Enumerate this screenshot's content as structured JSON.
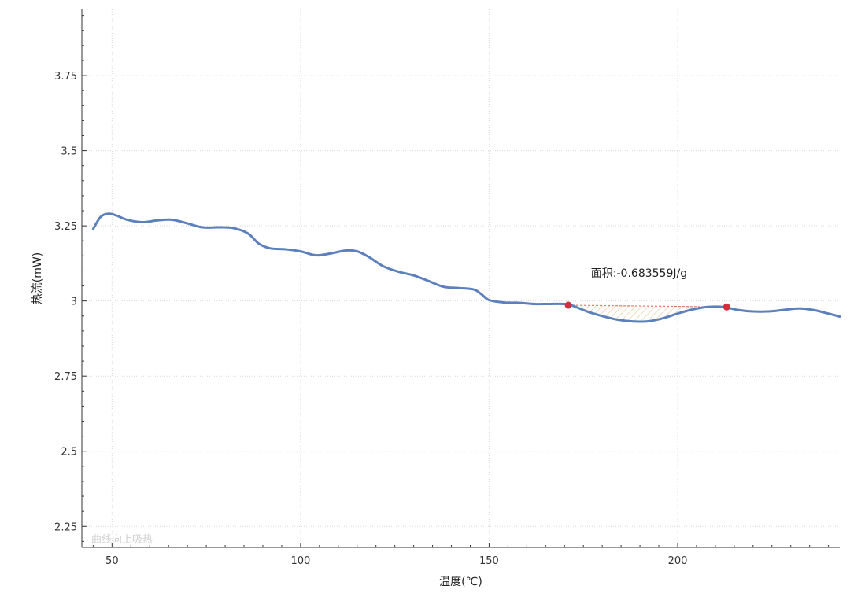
{
  "chart_data": {
    "type": "line",
    "title": "",
    "xlabel": "温度(℃)",
    "ylabel": "热流(mW)",
    "xlim": [
      42,
      243
    ],
    "ylim": [
      2.18,
      3.97
    ],
    "xticks": [
      50,
      100,
      150,
      200
    ],
    "xtick_labels": [
      "50",
      "100",
      "150",
      "200"
    ],
    "yticks": [
      2.25,
      2.5,
      2.75,
      3,
      3.25,
      3.5,
      3.75
    ],
    "ytick_labels": [
      "2.25",
      "2.5",
      "2.75",
      "3",
      "3.25",
      "3.5",
      "3.75"
    ],
    "grid": true,
    "line_color": "#5b80bd",
    "marker_color": "#d0303d",
    "baseline_color": "#e57a6a",
    "hatch_color": "#e0c48a",
    "series": [
      {
        "x": [
          45,
          47,
          49,
          51,
          54,
          58,
          62,
          66,
          70,
          74,
          78,
          82,
          86,
          89,
          92,
          96,
          100,
          104,
          108,
          112,
          115,
          118,
          122,
          126,
          130,
          134,
          138,
          142,
          146,
          148,
          150,
          154,
          158,
          162,
          166,
          170,
          172,
          176,
          180,
          184,
          188,
          192,
          196,
          200,
          204,
          208,
          212,
          216,
          220,
          224,
          228,
          232,
          236,
          240,
          243
        ],
        "y": [
          3.24,
          3.28,
          3.29,
          3.285,
          3.27,
          3.262,
          3.268,
          3.27,
          3.258,
          3.245,
          3.245,
          3.243,
          3.225,
          3.19,
          3.175,
          3.172,
          3.165,
          3.152,
          3.158,
          3.168,
          3.165,
          3.147,
          3.115,
          3.097,
          3.085,
          3.066,
          3.047,
          3.043,
          3.038,
          3.022,
          3.003,
          2.995,
          2.994,
          2.99,
          2.99,
          2.99,
          2.985,
          2.965,
          2.95,
          2.938,
          2.932,
          2.932,
          2.942,
          2.958,
          2.972,
          2.98,
          2.98,
          2.97,
          2.965,
          2.965,
          2.97,
          2.975,
          2.97,
          2.958,
          2.948
        ]
      }
    ],
    "integration": {
      "start": [
        171,
        2.986
      ],
      "end": [
        213,
        2.98
      ]
    },
    "annotation": {
      "text": "面积:-0.683559J/g",
      "x": 177,
      "y": 3.08
    },
    "watermark": "曲线向上吸热"
  }
}
